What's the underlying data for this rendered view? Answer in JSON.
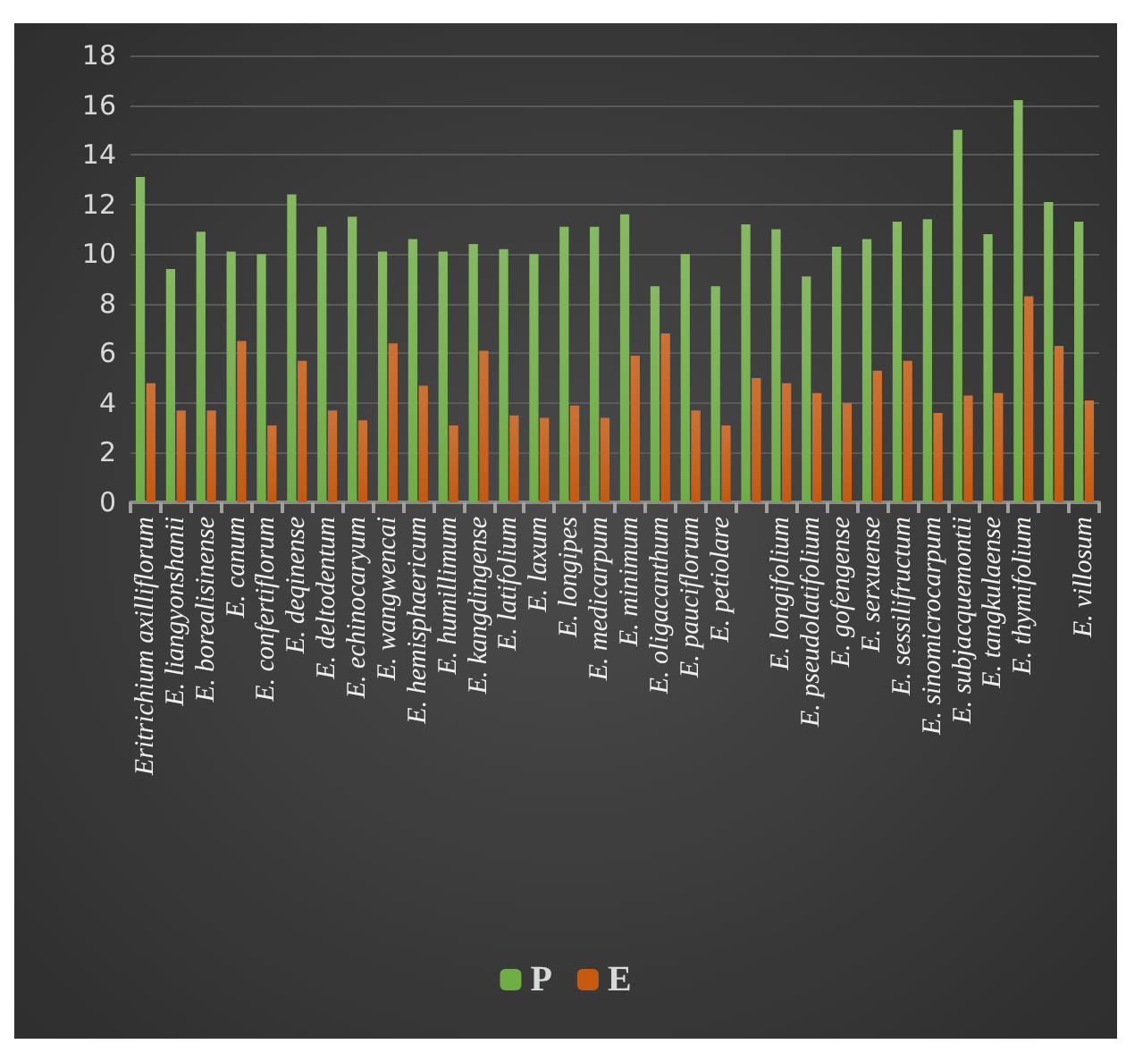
{
  "chart_data": {
    "type": "bar",
    "categories": [
      "Eritrichium axilliflorum",
      "E. liangyonshanii",
      "E. borealisinense",
      "E. canum",
      "E. confertiflorum",
      "E. deqinense",
      "E. deltodentum",
      "E. echinocaryum",
      "E. wangwencai",
      "E. hemisphaericum",
      "E. humillimum",
      "E. kangdingense",
      "E. latifolium",
      "E. laxum",
      "E. longipes",
      "E. medicarpum",
      "E. minimum",
      "E. oligacanthum",
      "E. pauciflorum",
      "E. petiolare",
      null,
      "E. longifolium",
      "E. pseudolatifolium",
      "E. gofengense",
      "E. serxuense",
      "E. sessilifructum",
      "E. sinomicrocarpum",
      "E. subjacquemontii",
      "E. tangkulaense",
      "E. thymifolium",
      null,
      "E. villosum"
    ],
    "series": [
      {
        "name": "P",
        "color": "#70ad47",
        "values": [
          13.1,
          9.4,
          10.9,
          10.1,
          10.0,
          12.4,
          11.1,
          11.5,
          10.1,
          10.6,
          10.1,
          10.4,
          10.2,
          10.0,
          11.1,
          11.1,
          11.6,
          8.7,
          10.0,
          8.7,
          11.2,
          11.0,
          9.1,
          10.3,
          10.6,
          11.3,
          11.4,
          15.0,
          10.8,
          16.2,
          12.1,
          11.3
        ]
      },
      {
        "name": "E",
        "color": "#c55a11",
        "values": [
          4.8,
          3.7,
          3.7,
          6.5,
          3.1,
          5.7,
          3.7,
          3.3,
          6.4,
          4.7,
          3.1,
          6.1,
          3.5,
          3.4,
          3.9,
          3.4,
          5.9,
          6.8,
          3.7,
          3.1,
          5.0,
          4.8,
          4.4,
          4.0,
          5.3,
          5.7,
          3.6,
          4.3,
          4.4,
          8.3,
          6.3,
          4.1
        ]
      }
    ],
    "ylim": [
      0,
      18
    ],
    "yticks": [
      0,
      2,
      4,
      6,
      8,
      10,
      12,
      14,
      16,
      18
    ],
    "grid": "y",
    "legend": "bottom"
  }
}
